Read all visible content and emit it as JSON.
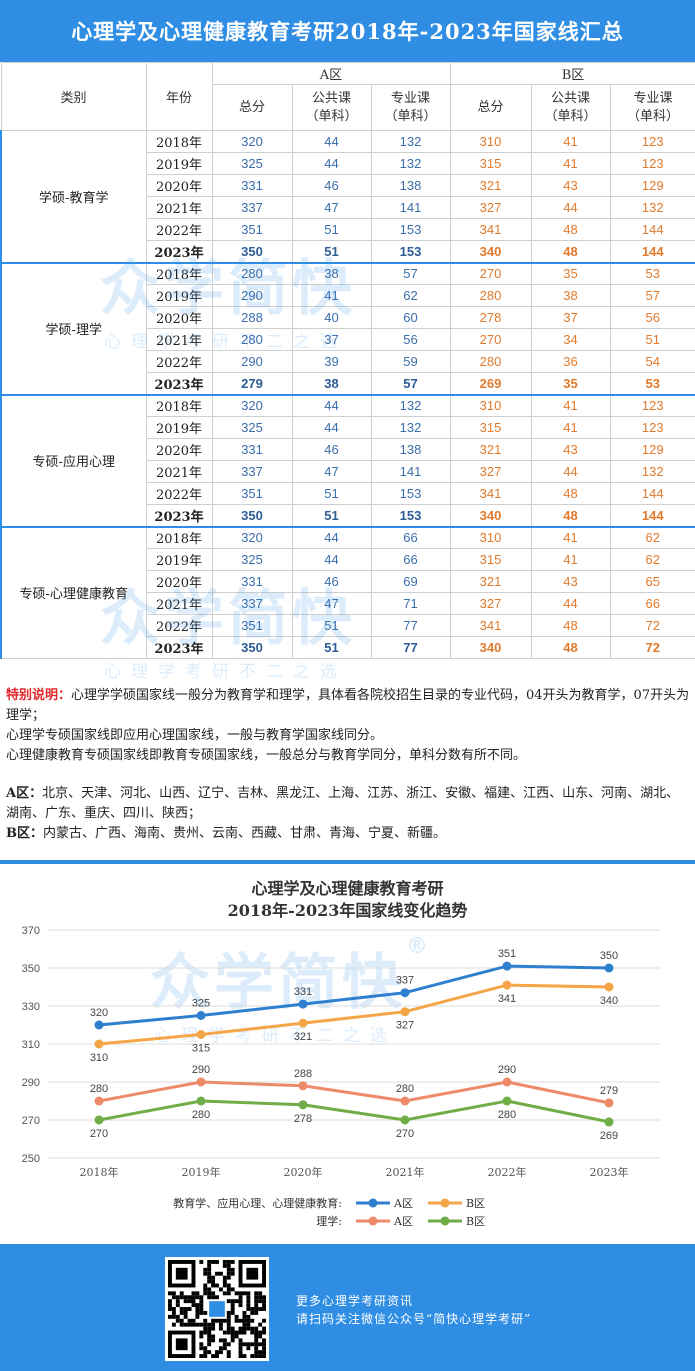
{
  "title": "心理学及心理健康教育考研2018年-2023年国家线汇总",
  "table": {
    "col_category": "类别",
    "col_year": "年份",
    "zone_a": "A区",
    "zone_b": "B区",
    "col_total": "总分",
    "col_public": "公共课",
    "col_major": "专业课",
    "col_single": "（单科）",
    "groups": [
      {
        "name": "学硕-教育学",
        "rows": [
          {
            "year": "2018年",
            "a": [
              "320",
              "44",
              "132"
            ],
            "b": [
              "310",
              "41",
              "123"
            ]
          },
          {
            "year": "2019年",
            "a": [
              "325",
              "44",
              "132"
            ],
            "b": [
              "315",
              "41",
              "123"
            ]
          },
          {
            "year": "2020年",
            "a": [
              "331",
              "46",
              "138"
            ],
            "b": [
              "321",
              "43",
              "129"
            ]
          },
          {
            "year": "2021年",
            "a": [
              "337",
              "47",
              "141"
            ],
            "b": [
              "327",
              "44",
              "132"
            ]
          },
          {
            "year": "2022年",
            "a": [
              "351",
              "51",
              "153"
            ],
            "b": [
              "341",
              "48",
              "144"
            ]
          },
          {
            "year": "2023年",
            "a": [
              "350",
              "51",
              "153"
            ],
            "b": [
              "340",
              "48",
              "144"
            ]
          }
        ]
      },
      {
        "name": "学硕-理学",
        "rows": [
          {
            "year": "2018年",
            "a": [
              "280",
              "38",
              "57"
            ],
            "b": [
              "270",
              "35",
              "53"
            ]
          },
          {
            "year": "2019年",
            "a": [
              "290",
              "41",
              "62"
            ],
            "b": [
              "280",
              "38",
              "57"
            ]
          },
          {
            "year": "2020年",
            "a": [
              "288",
              "40",
              "60"
            ],
            "b": [
              "278",
              "37",
              "56"
            ]
          },
          {
            "year": "2021年",
            "a": [
              "280",
              "37",
              "56"
            ],
            "b": [
              "270",
              "34",
              "51"
            ]
          },
          {
            "year": "2022年",
            "a": [
              "290",
              "39",
              "59"
            ],
            "b": [
              "280",
              "36",
              "54"
            ]
          },
          {
            "year": "2023年",
            "a": [
              "279",
              "38",
              "57"
            ],
            "b": [
              "269",
              "35",
              "53"
            ]
          }
        ]
      },
      {
        "name": "专硕-应用心理",
        "rows": [
          {
            "year": "2018年",
            "a": [
              "320",
              "44",
              "132"
            ],
            "b": [
              "310",
              "41",
              "123"
            ]
          },
          {
            "year": "2019年",
            "a": [
              "325",
              "44",
              "132"
            ],
            "b": [
              "315",
              "41",
              "123"
            ]
          },
          {
            "year": "2020年",
            "a": [
              "331",
              "46",
              "138"
            ],
            "b": [
              "321",
              "43",
              "129"
            ]
          },
          {
            "year": "2021年",
            "a": [
              "337",
              "47",
              "141"
            ],
            "b": [
              "327",
              "44",
              "132"
            ]
          },
          {
            "year": "2022年",
            "a": [
              "351",
              "51",
              "153"
            ],
            "b": [
              "341",
              "48",
              "144"
            ]
          },
          {
            "year": "2023年",
            "a": [
              "350",
              "51",
              "153"
            ],
            "b": [
              "340",
              "48",
              "144"
            ]
          }
        ]
      },
      {
        "name": "专硕-心理健康教育",
        "rows": [
          {
            "year": "2018年",
            "a": [
              "320",
              "44",
              "66"
            ],
            "b": [
              "310",
              "41",
              "62"
            ]
          },
          {
            "year": "2019年",
            "a": [
              "325",
              "44",
              "66"
            ],
            "b": [
              "315",
              "41",
              "62"
            ]
          },
          {
            "year": "2020年",
            "a": [
              "331",
              "46",
              "69"
            ],
            "b": [
              "321",
              "43",
              "65"
            ]
          },
          {
            "year": "2021年",
            "a": [
              "337",
              "47",
              "71"
            ],
            "b": [
              "327",
              "44",
              "66"
            ]
          },
          {
            "year": "2022年",
            "a": [
              "351",
              "51",
              "77"
            ],
            "b": [
              "341",
              "48",
              "72"
            ]
          },
          {
            "year": "2023年",
            "a": [
              "350",
              "51",
              "77"
            ],
            "b": [
              "340",
              "48",
              "72"
            ]
          }
        ]
      }
    ]
  },
  "notes": {
    "label": "特别说明：",
    "line1": "心理学学硕国家线一般分为教育学和理学，具体看各院校招生目录的专业代码，04开头为教育学，07开头为理学；",
    "line2": "心理学专硕国家线即应用心理国家线，一般与教育学国家线同分。",
    "line3": "心理健康教育专硕国家线即教育专硕国家线，一般总分与教育学同分，单科分数有所不同。",
    "a_label": "A区：",
    "a_text": "北京、天津、河北、山西、辽宁、吉林、黑龙江、上海、江苏、浙江、安徽、福建、江西、山东、河南、湖北、湖南、广东、重庆、四川、陕西；",
    "b_label": "B区：",
    "b_text": "内蒙古、广西、海南、贵州、云南、西藏、甘肃、青海、宁夏、新疆。"
  },
  "watermark": {
    "logo": "众学简快",
    "slogan": "心理学考研不二之选",
    "registered": "®"
  },
  "chart_data": {
    "type": "line",
    "title_line1": "心理学及心理健康教育考研",
    "title_line2": "2018年-2023年国家线变化趋势",
    "categories": [
      "2018年",
      "2019年",
      "2020年",
      "2021年",
      "2022年",
      "2023年"
    ],
    "ylim": [
      250,
      370
    ],
    "yticks": [
      250,
      270,
      290,
      310,
      330,
      350,
      370
    ],
    "series": [
      {
        "name": "A区",
        "group": "教育学、应用心理、心理健康教育:",
        "color": "#2f7fcf",
        "values": [
          320,
          325,
          331,
          337,
          351,
          350
        ],
        "label_pos": "above"
      },
      {
        "name": "B区",
        "group": "教育学、应用心理、心理健康教育:",
        "color": "#f4a548",
        "values": [
          310,
          315,
          321,
          327,
          341,
          340
        ],
        "label_pos": "below"
      },
      {
        "name": "A区",
        "group": "理学:",
        "color": "#ec8a6a",
        "values": [
          280,
          290,
          288,
          280,
          290,
          279
        ],
        "label_pos": "above"
      },
      {
        "name": "B区",
        "group": "理学:",
        "color": "#70ad47",
        "values": [
          270,
          280,
          278,
          270,
          280,
          269
        ],
        "label_pos": "below"
      }
    ],
    "legend_group1": "教育学、应用心理、心理健康教育:",
    "legend_group2": "理学:",
    "legend_placement": "bottom",
    "grid": true
  },
  "footer": {
    "line1": "更多心理学考研资讯",
    "line2": "请扫码关注微信公众号“简快心理学考研”"
  },
  "colors": {
    "brand_blue": "#2f8ee3",
    "zone_a": "#2f73c0",
    "zone_b": "#e07a2c",
    "note_red": "#e0262a"
  }
}
